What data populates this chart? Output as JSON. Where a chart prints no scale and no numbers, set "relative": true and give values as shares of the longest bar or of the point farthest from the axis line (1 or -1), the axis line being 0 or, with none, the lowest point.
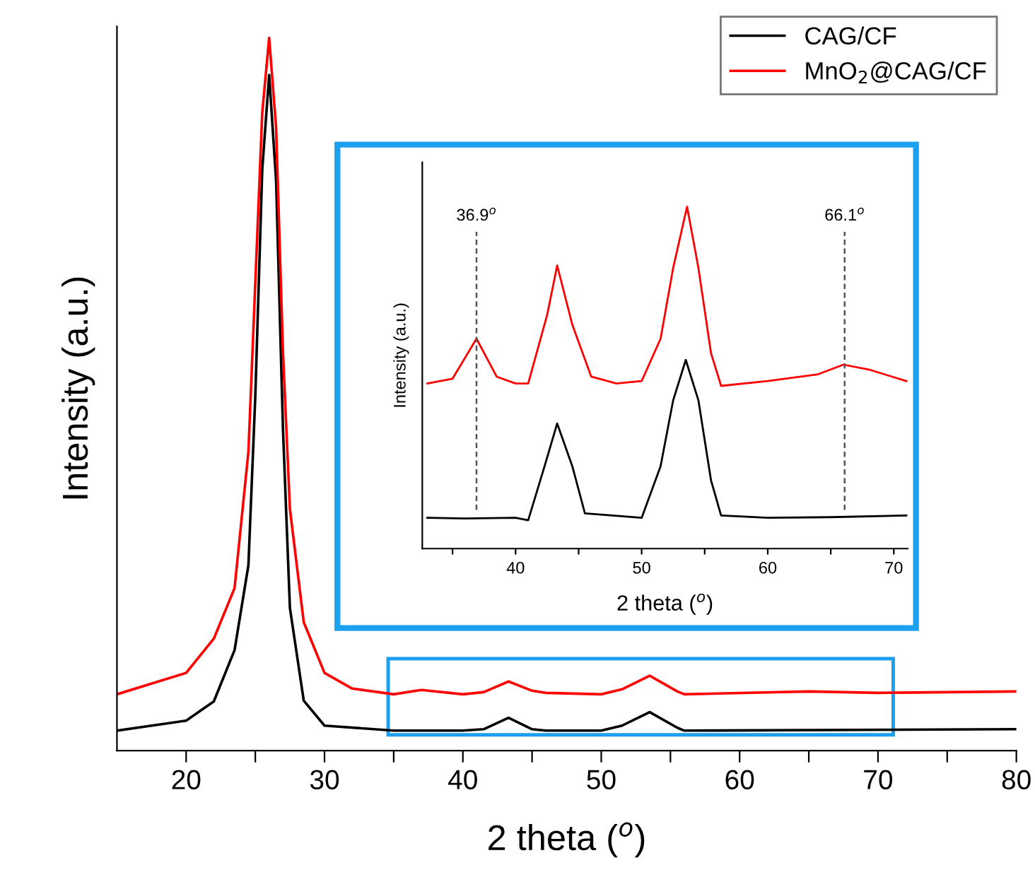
{
  "chart_data": [
    {
      "type": "line",
      "xlabel": "2 theta ($^{o}$)",
      "ylabel": "Intensity (a.u.)",
      "relative": true,
      "xlim": [
        15,
        80
      ],
      "xticks": [
        20,
        {
          "value": 25,
          "label": null
        },
        30,
        {
          "value": 35,
          "label": null
        },
        40,
        {
          "value": 45,
          "label": null
        },
        50,
        {
          "value": 55,
          "label": null
        },
        60,
        {
          "value": 65,
          "label": null
        },
        70,
        {
          "value": 75,
          "label": null
        },
        80
      ],
      "tick_labels": "x",
      "legend": "top right",
      "grid": false,
      "series": [
        {
          "name": "CAG/CF",
          "color": "#000000",
          "x": [
            15,
            20,
            22,
            23.5,
            24.5,
            25,
            25.5,
            26,
            26.5,
            27,
            27.5,
            28.5,
            30,
            35,
            40,
            41.5,
            43.3,
            45,
            46,
            50,
            51.5,
            53.5,
            55.5,
            56,
            80
          ],
          "values": [
            0.028,
            0.042,
            0.069,
            0.141,
            0.26,
            0.498,
            0.815,
            0.948,
            0.8,
            0.45,
            0.2,
            0.07,
            0.035,
            0.028,
            0.028,
            0.03,
            0.046,
            0.03,
            0.028,
            0.028,
            0.035,
            0.054,
            0.032,
            0.028,
            0.03
          ]
        },
        {
          "name": "MnO$_{2}$@CAG/CF",
          "color": "#ff0000",
          "x": [
            15,
            20,
            22,
            23.5,
            24.5,
            25,
            25.5,
            26,
            26.5,
            27,
            27.5,
            28.5,
            30,
            32,
            35,
            37,
            40,
            41.5,
            43.3,
            45,
            46,
            50,
            51.5,
            53.5,
            55.5,
            56,
            65,
            70,
            80
          ],
          "values": [
            0.079,
            0.109,
            0.157,
            0.228,
            0.419,
            0.657,
            0.895,
            1.0,
            0.875,
            0.558,
            0.339,
            0.18,
            0.109,
            0.087,
            0.079,
            0.085,
            0.079,
            0.082,
            0.097,
            0.084,
            0.081,
            0.079,
            0.086,
            0.105,
            0.083,
            0.079,
            0.083,
            0.081,
            0.083
          ]
        }
      ]
    },
    {
      "type": "line",
      "xlabel": "2 theta ($^{o}$)",
      "ylabel": "Intensity (a.u.)",
      "relative": true,
      "xlim": [
        32.6,
        71.1
      ],
      "xticks": [
        {
          "value": 35,
          "label": null
        },
        40,
        {
          "value": 45,
          "label": null
        },
        50,
        {
          "value": 55,
          "label": null
        },
        60,
        {
          "value": 65,
          "label": null
        },
        70
      ],
      "tick_labels": "x",
      "grid": false,
      "ref_lines": [
        {
          "axis": "x",
          "value": 36.9,
          "label": "36.9$^{o}$",
          "color": "#555555",
          "line_style": "dashed"
        },
        {
          "axis": "x",
          "value": 66.1,
          "label": "66.1$^{o}$",
          "color": "#555555",
          "line_style": "dashed"
        }
      ],
      "series": [
        {
          "color": "#000000",
          "x": [
            33,
            36,
            40,
            41,
            42.3,
            43.3,
            44.5,
            45.5,
            50,
            51.5,
            52.5,
            53.5,
            54.5,
            55.5,
            56.3,
            60,
            65,
            71
          ],
          "values": [
            0.09,
            0.088,
            0.09,
            0.083,
            0.241,
            0.366,
            0.241,
            0.103,
            0.09,
            0.241,
            0.434,
            0.552,
            0.434,
            0.2,
            0.097,
            0.09,
            0.092,
            0.097
          ]
        },
        {
          "color": "#ff0000",
          "x": [
            33,
            35,
            36.9,
            38.5,
            40,
            41,
            42.5,
            43.3,
            44.5,
            46,
            48,
            50,
            51.5,
            52.5,
            53.6,
            54.5,
            55.5,
            56.3,
            60,
            64,
            66,
            68,
            71
          ],
          "values": [
            0.483,
            0.497,
            0.614,
            0.503,
            0.483,
            0.483,
            0.683,
            0.828,
            0.655,
            0.503,
            0.483,
            0.49,
            0.614,
            0.821,
            1.0,
            0.821,
            0.572,
            0.476,
            0.49,
            0.51,
            0.538,
            0.524,
            0.49
          ]
        }
      ]
    }
  ]
}
